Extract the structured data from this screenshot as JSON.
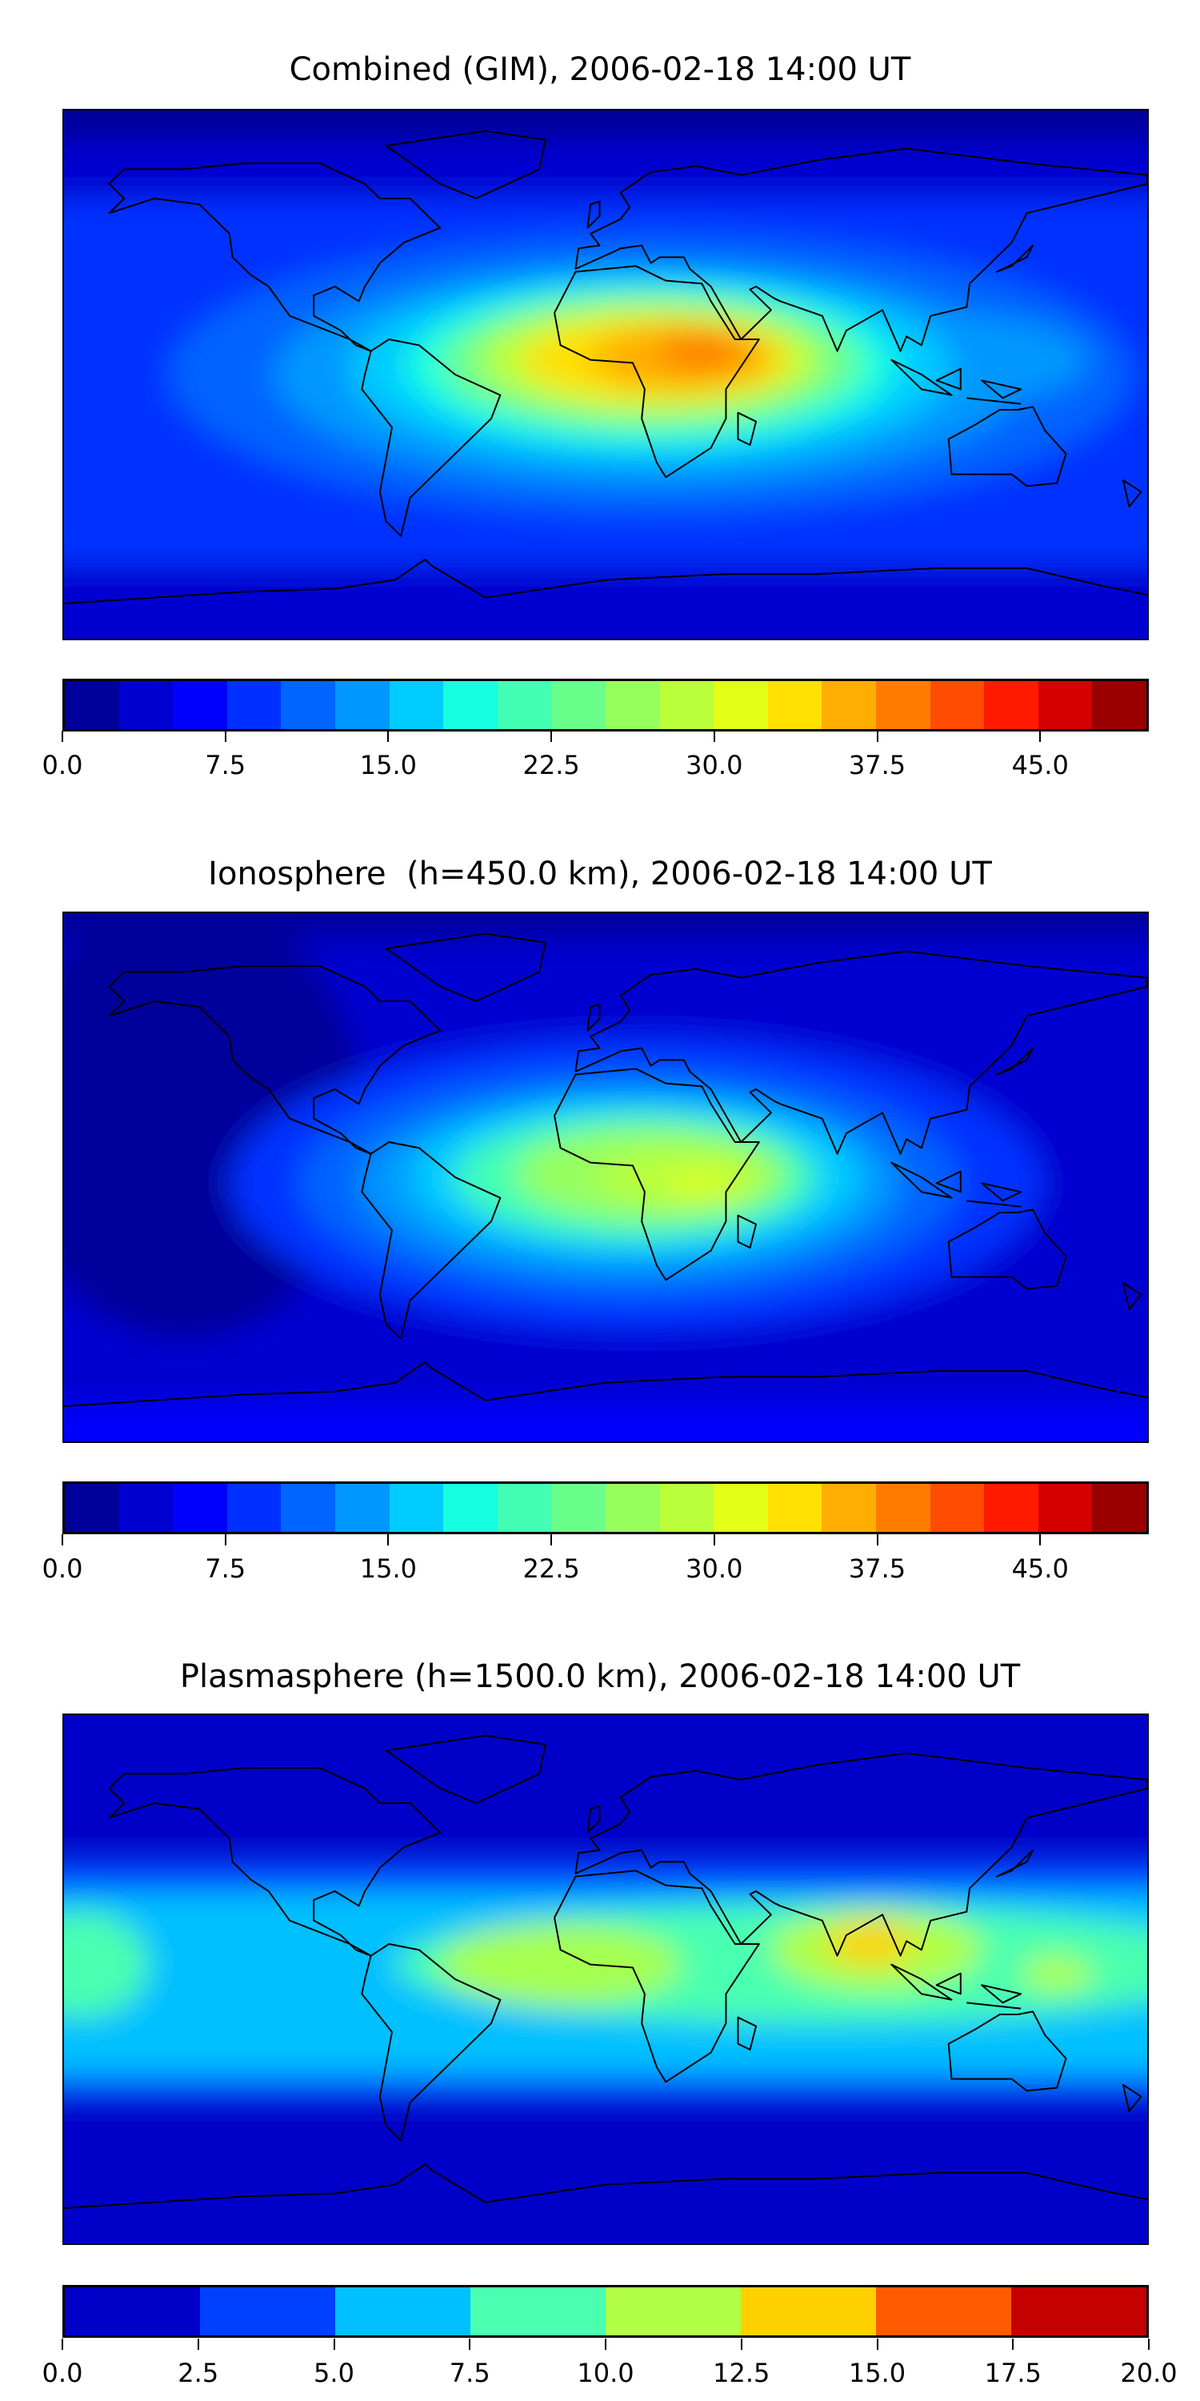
{
  "chart_data": [
    {
      "type": "heatmap",
      "title": "Combined (GIM), 2006-02-18 14:00 UT",
      "levels": [
        0,
        2.5,
        5,
        7.5,
        10,
        12.5,
        15,
        17.5,
        20,
        22.5,
        25,
        27.5,
        30,
        32.5,
        35,
        37.5,
        40,
        42.5,
        45,
        47.5,
        50
      ],
      "colors": [
        "#00009a",
        "#0000d0",
        "#0000ff",
        "#0030ff",
        "#0064ff",
        "#0098ff",
        "#00ccff",
        "#16ffe0",
        "#42ffb4",
        "#6aff8a",
        "#96ff5e",
        "#baff3a",
        "#e2ff16",
        "#ffe000",
        "#ffae00",
        "#ff7c00",
        "#ff4c00",
        "#ff1a00",
        "#d40000",
        "#9a0000"
      ],
      "colorbar_ticks": [
        0,
        7.5,
        15,
        22.5,
        30,
        37.5,
        45
      ],
      "colorbar_tick_labels": [
        "0.0",
        "7.5",
        "15.0",
        "22.5",
        "30.0",
        "37.5",
        "45.0"
      ],
      "vrange": [
        0,
        50
      ],
      "max_region": "equatorial Africa / Atlantic, ~40"
    },
    {
      "type": "heatmap",
      "title": "Ionosphere  (h=450.0 km), 2006-02-18 14:00 UT",
      "levels": [
        0,
        2.5,
        5,
        7.5,
        10,
        12.5,
        15,
        17.5,
        20,
        22.5,
        25,
        27.5,
        30,
        32.5,
        35,
        37.5,
        40,
        42.5,
        45,
        47.5,
        50
      ],
      "colors": [
        "#00009a",
        "#0000d0",
        "#0000ff",
        "#0030ff",
        "#0064ff",
        "#0098ff",
        "#00ccff",
        "#16ffe0",
        "#42ffb4",
        "#6aff8a",
        "#96ff5e",
        "#baff3a",
        "#e2ff16",
        "#ffe000",
        "#ffae00",
        "#ff7c00",
        "#ff4c00",
        "#ff1a00",
        "#d40000",
        "#9a0000"
      ],
      "colorbar_ticks": [
        0,
        7.5,
        15,
        22.5,
        30,
        37.5,
        45
      ],
      "colorbar_tick_labels": [
        "0.0",
        "7.5",
        "15.0",
        "22.5",
        "30.0",
        "37.5",
        "45.0"
      ],
      "vrange": [
        0,
        50
      ],
      "max_region": "central Africa, ~30"
    },
    {
      "type": "heatmap",
      "title": "Plasmasphere (h=1500.0 km), 2006-02-18 14:00 UT",
      "levels": [
        0,
        2.5,
        5,
        7.5,
        10,
        12.5,
        15,
        17.5,
        20
      ],
      "colors": [
        "#0000c8",
        "#0040ff",
        "#00c0ff",
        "#4affb0",
        "#b0ff46",
        "#ffd000",
        "#ff5a00",
        "#c40000"
      ],
      "colorbar_ticks": [
        0,
        2.5,
        5,
        7.5,
        10,
        12.5,
        15,
        17.5,
        20
      ],
      "colorbar_tick_labels": [
        "0.0",
        "2.5",
        "5.0",
        "7.5",
        "10.0",
        "12.5",
        "15.0",
        "17.5",
        "20.0"
      ],
      "vrange": [
        0,
        20
      ],
      "max_region": "India / Bay of Bengal, ~13"
    }
  ]
}
